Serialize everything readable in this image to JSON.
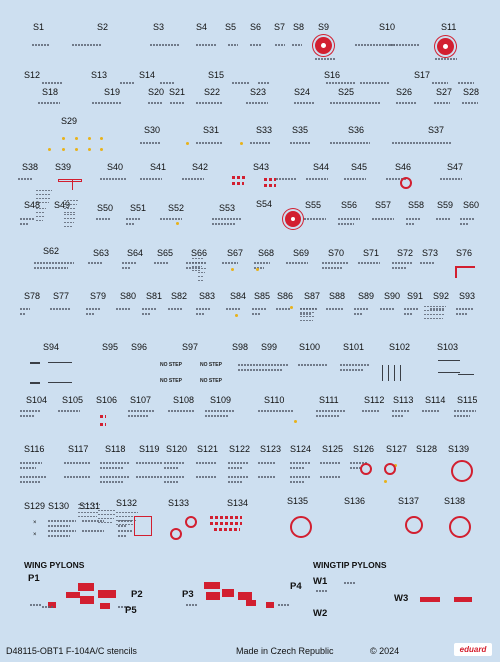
{
  "sheet": {
    "code": "D48115-OBT1 F-104A/C stencils",
    "made_in": "Made in Czech Republic",
    "copyright": "© 2024",
    "brand": "eduard",
    "section_wing_pylons": "WING PYLONS",
    "section_wingtip_pylons": "WINGTIP PYLONS",
    "nostep_text": "NO STEP"
  },
  "decal_labels": [
    "S1",
    "S2",
    "S3",
    "S4",
    "S5",
    "S6",
    "S7",
    "S8",
    "S9",
    "S10",
    "S11",
    "S12",
    "S13",
    "S14",
    "S15",
    "S16",
    "S17",
    "S18",
    "S19",
    "S20",
    "S21",
    "S22",
    "S23",
    "S24",
    "S25",
    "S26",
    "S27",
    "S28",
    "S29",
    "S30",
    "S31",
    "S33",
    "S35",
    "S36",
    "S37",
    "S38",
    "S39",
    "S40",
    "S41",
    "S42",
    "S43",
    "S44",
    "S45",
    "S46",
    "S47",
    "S48",
    "S49",
    "S50",
    "S51",
    "S52",
    "S53",
    "S54",
    "S55",
    "S56",
    "S57",
    "S58",
    "S59",
    "S60",
    "S62",
    "S63",
    "S64",
    "S65",
    "S66",
    "S67",
    "S68",
    "S69",
    "S70",
    "S71",
    "S72",
    "S73",
    "S76",
    "S78",
    "S77",
    "S79",
    "S80",
    "S81",
    "S82",
    "S83",
    "S84",
    "S85",
    "S86",
    "S87",
    "S88",
    "S89",
    "S90",
    "S91",
    "S92",
    "S93",
    "S94",
    "S95",
    "S96",
    "S97",
    "S98",
    "S99",
    "S100",
    "S101",
    "S102",
    "S103",
    "S104",
    "S105",
    "S106",
    "S107",
    "S108",
    "S109",
    "S110",
    "S111",
    "S112",
    "S113",
    "S114",
    "S115",
    "S116",
    "S117",
    "S118",
    "S119",
    "S120",
    "S121",
    "S122",
    "S123",
    "S124",
    "S125",
    "S126",
    "S127",
    "S128",
    "S139",
    "S129",
    "S130",
    "S131",
    "S132",
    "S133",
    "S134",
    "S135",
    "S136",
    "S137",
    "S138"
  ],
  "pylon_labels": [
    "P1",
    "P2",
    "P3",
    "P4",
    "P5",
    "W1",
    "W2",
    "W3"
  ]
}
